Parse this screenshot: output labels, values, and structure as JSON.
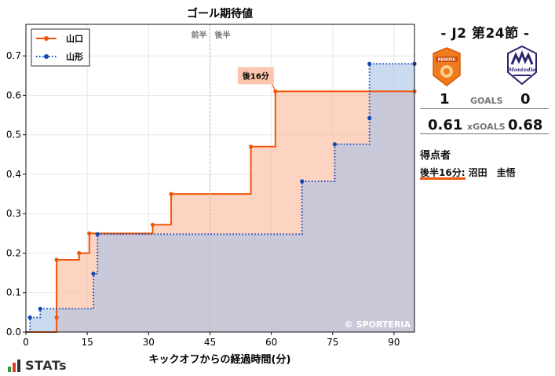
{
  "chart_data": {
    "type": "line",
    "step": true,
    "title": "ゴール期待値",
    "xlabel": "キックオフからの経過時間(分)",
    "ylabel": "",
    "xlim": [
      0,
      95
    ],
    "ylim": [
      0,
      0.78
    ],
    "xticks": [
      0,
      15,
      30,
      45,
      60,
      75,
      90
    ],
    "yticks": [
      0,
      0.1,
      0.2,
      0.3,
      0.4,
      0.5,
      0.6,
      0.7
    ],
    "half_line": 45,
    "half_labels": [
      "前半",
      "後半"
    ],
    "legend_position": "top-left",
    "series": [
      {
        "name": "山口",
        "color": "#f0560a",
        "fill": "#fbb79a",
        "line_style": "solid",
        "points": [
          [
            7.5,
            0.037
          ],
          [
            7.5,
            0.183
          ],
          [
            13,
            0.2
          ],
          [
            15.5,
            0.25
          ],
          [
            31,
            0.272
          ],
          [
            35.5,
            0.35
          ],
          [
            55,
            0.47
          ],
          [
            61,
            0.61
          ],
          [
            95,
            0.61
          ]
        ]
      },
      {
        "name": "山形",
        "color": "#1446b4",
        "fill": "#a7c1e8",
        "line_style": "dotted",
        "points": [
          [
            1,
            0.037
          ],
          [
            3.5,
            0.059
          ],
          [
            16.5,
            0.148
          ],
          [
            17.5,
            0.248
          ],
          [
            67.5,
            0.382
          ],
          [
            75.5,
            0.476
          ],
          [
            84,
            0.542
          ],
          [
            84,
            0.68
          ],
          [
            95,
            0.68
          ]
        ]
      }
    ],
    "annotations": [
      {
        "text": "後16分",
        "x": 61,
        "y": 0.61,
        "series": "山口"
      }
    ]
  },
  "watermark": "© SPORTERIA",
  "panel": {
    "title": "- J2 第24節 -",
    "home_goals": "1",
    "away_goals": "0",
    "goals_label": "GOALS",
    "home_xg": "0.61",
    "away_xg": "0.68",
    "xg_label": "xGOALS",
    "home_crest_text": "RENOFA",
    "away_crest_text": "Montedio",
    "scorers_title": "得点者",
    "scorer": "後半16分: 沼田　圭悟"
  },
  "logo_text": "STATs"
}
